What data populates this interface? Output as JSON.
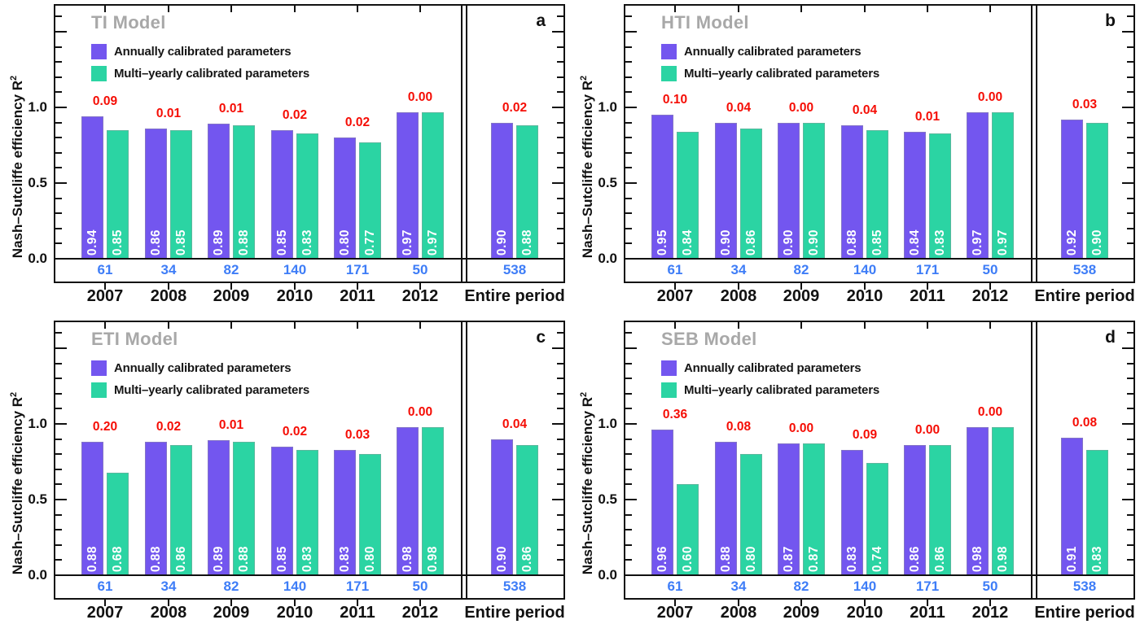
{
  "figure": {
    "ylabel": "Nash–Sutcliffe efficiency R",
    "ylabel_sup": "2",
    "ytick_labels": [
      "0.0",
      "0.5",
      "1.0"
    ],
    "legend": [
      {
        "label": "Annually calibrated parameters",
        "color": "#7356EF"
      },
      {
        "label": "Multi–yearly calibrated parameters",
        "color": "#2BD4A3"
      }
    ],
    "x_categories": [
      "2007",
      "2008",
      "2009",
      "2010",
      "2011",
      "2012"
    ],
    "entire_label": "Entire period",
    "sample_counts": [
      "61",
      "34",
      "82",
      "140",
      "171",
      "50",
      "538"
    ],
    "colors": {
      "annual": "#7356EF",
      "multi": "#2BD4A3",
      "diff_text": "#F50D05",
      "count_text": "#3E7DF7",
      "title_text": "#A8A8A8",
      "frame": "#111111",
      "bar_value_text": "#FFFFFF"
    }
  },
  "chart_data": [
    {
      "type": "bar",
      "panel_tag": "a",
      "title": "TI Model",
      "categories": [
        "2007",
        "2008",
        "2009",
        "2010",
        "2011",
        "2012",
        "Entire period"
      ],
      "series": [
        {
          "name": "Annually calibrated parameters",
          "values": [
            0.94,
            0.86,
            0.89,
            0.85,
            0.8,
            0.97,
            0.9
          ]
        },
        {
          "name": "Multi–yearly calibrated parameters",
          "values": [
            0.85,
            0.85,
            0.88,
            0.83,
            0.77,
            0.97,
            0.88
          ]
        }
      ],
      "bar_value_labels": [
        [
          "0.94",
          "0.86",
          "0.89",
          "0.85",
          "0.80",
          "0.97",
          "0.90"
        ],
        [
          "0.85",
          "0.85",
          "0.88",
          "0.83",
          "0.77",
          "0.97",
          "0.88"
        ]
      ],
      "diff_labels": [
        "0.09",
        "0.01",
        "0.01",
        "0.02",
        "0.02",
        "0.00",
        "0.02"
      ],
      "counts": [
        "61",
        "34",
        "82",
        "140",
        "171",
        "50",
        "538"
      ],
      "ylabel": "Nash–Sutcliffe efficiency R²",
      "ylim": [
        0,
        1.68
      ],
      "yticks_major": [
        0,
        0.5,
        1.0,
        1.5
      ],
      "yticks_labeled": [
        "0.0",
        "0.5",
        "1.0"
      ],
      "grid": "off",
      "legend_position": "top-left-inside"
    },
    {
      "type": "bar",
      "panel_tag": "b",
      "title": "HTI Model",
      "categories": [
        "2007",
        "2008",
        "2009",
        "2010",
        "2011",
        "2012",
        "Entire period"
      ],
      "series": [
        {
          "name": "Annually calibrated parameters",
          "values": [
            0.95,
            0.9,
            0.9,
            0.88,
            0.84,
            0.97,
            0.92
          ]
        },
        {
          "name": "Multi–yearly calibrated parameters",
          "values": [
            0.84,
            0.86,
            0.9,
            0.85,
            0.83,
            0.97,
            0.9
          ]
        }
      ],
      "bar_value_labels": [
        [
          "0.95",
          "0.90",
          "0.90",
          "0.88",
          "0.84",
          "0.97",
          "0.92"
        ],
        [
          "0.84",
          "0.86",
          "0.90",
          "0.85",
          "0.83",
          "0.97",
          "0.90"
        ]
      ],
      "diff_labels": [
        "0.10",
        "0.04",
        "0.00",
        "0.04",
        "0.01",
        "0.00",
        "0.03"
      ],
      "counts": [
        "61",
        "34",
        "82",
        "140",
        "171",
        "50",
        "538"
      ],
      "ylabel": "Nash–Sutcliffe efficiency R²",
      "ylim": [
        0,
        1.68
      ],
      "yticks_major": [
        0,
        0.5,
        1.0,
        1.5
      ],
      "yticks_labeled": [
        "0.0",
        "0.5",
        "1.0"
      ],
      "grid": "off",
      "legend_position": "top-left-inside"
    },
    {
      "type": "bar",
      "panel_tag": "c",
      "title": "ETI Model",
      "categories": [
        "2007",
        "2008",
        "2009",
        "2010",
        "2011",
        "2012",
        "Entire period"
      ],
      "series": [
        {
          "name": "Annually calibrated parameters",
          "values": [
            0.88,
            0.88,
            0.89,
            0.85,
            0.83,
            0.98,
            0.9
          ]
        },
        {
          "name": "Multi–yearly calibrated parameters",
          "values": [
            0.68,
            0.86,
            0.88,
            0.83,
            0.8,
            0.98,
            0.86
          ]
        }
      ],
      "bar_value_labels": [
        [
          "0.88",
          "0.88",
          "0.89",
          "0.85",
          "0.83",
          "0.98",
          "0.90"
        ],
        [
          "0.68",
          "0.86",
          "0.88",
          "0.83",
          "0.80",
          "0.98",
          "0.86"
        ]
      ],
      "diff_labels": [
        "0.20",
        "0.02",
        "0.01",
        "0.02",
        "0.03",
        "0.00",
        "0.04"
      ],
      "counts": [
        "61",
        "34",
        "82",
        "140",
        "171",
        "50",
        "538"
      ],
      "ylabel": "Nash–Sutcliffe efficiency R²",
      "ylim": [
        0,
        1.68
      ],
      "yticks_major": [
        0,
        0.5,
        1.0,
        1.5
      ],
      "yticks_labeled": [
        "0.0",
        "0.5",
        "1.0"
      ],
      "grid": "off",
      "legend_position": "top-left-inside"
    },
    {
      "type": "bar",
      "panel_tag": "d",
      "title": "SEB Model",
      "categories": [
        "2007",
        "2008",
        "2009",
        "2010",
        "2011",
        "2012",
        "Entire period"
      ],
      "series": [
        {
          "name": "Annually calibrated parameters",
          "values": [
            0.96,
            0.88,
            0.87,
            0.83,
            0.86,
            0.98,
            0.91
          ]
        },
        {
          "name": "Multi–yearly calibrated parameters",
          "values": [
            0.6,
            0.8,
            0.87,
            0.74,
            0.86,
            0.98,
            0.83
          ]
        }
      ],
      "bar_value_labels": [
        [
          "0.96",
          "0.88",
          "0.87",
          "0.83",
          "0.86",
          "0.98",
          "0.91"
        ],
        [
          "0.60",
          "0.80",
          "0.87",
          "0.74",
          "0.86",
          "0.98",
          "0.83"
        ]
      ],
      "diff_labels": [
        "0.36",
        "0.08",
        "0.00",
        "0.09",
        "0.00",
        "0.00",
        "0.08"
      ],
      "counts": [
        "61",
        "34",
        "82",
        "140",
        "171",
        "50",
        "538"
      ],
      "ylabel": "Nash–Sutcliffe efficiency R²",
      "ylim": [
        0,
        1.68
      ],
      "yticks_major": [
        0,
        0.5,
        1.0,
        1.5
      ],
      "yticks_labeled": [
        "0.0",
        "0.5",
        "1.0"
      ],
      "grid": "off",
      "legend_position": "top-left-inside"
    }
  ]
}
